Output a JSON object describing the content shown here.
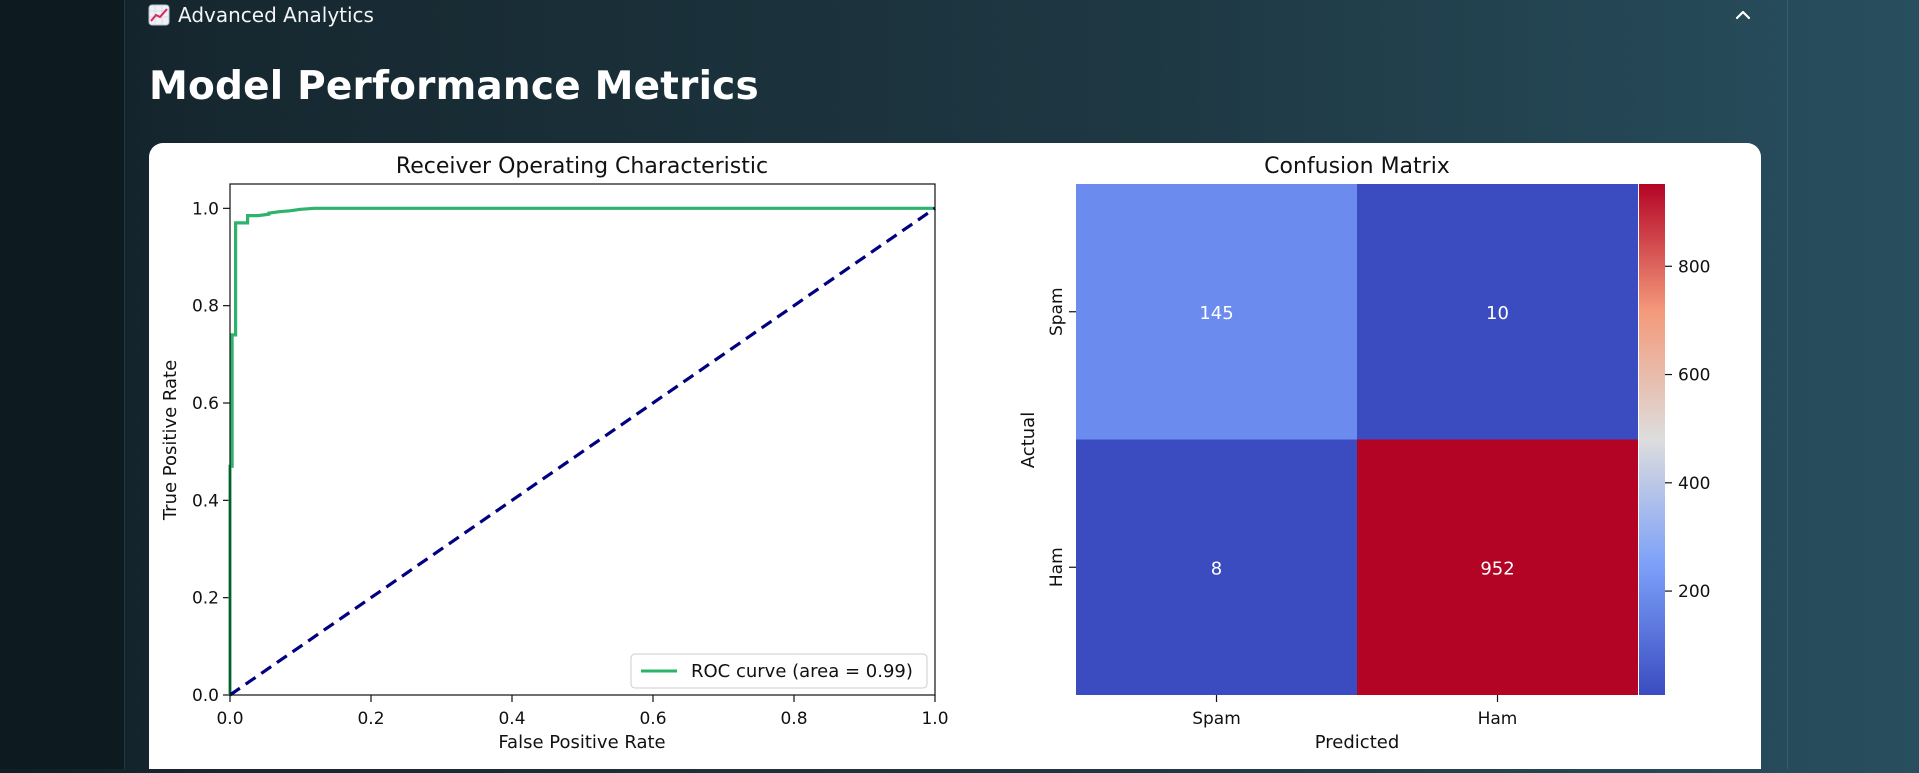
{
  "expander": {
    "label": "Advanced Analytics",
    "icon": "chart-increasing-icon",
    "expanded": true
  },
  "section": {
    "title": "Model Performance Metrics"
  },
  "chart_data": [
    {
      "type": "line",
      "title": "Receiver Operating Characteristic",
      "xlabel": "False Positive Rate",
      "ylabel": "True Positive Rate",
      "xlim": [
        0,
        1
      ],
      "ylim": [
        0,
        1.05
      ],
      "xticks": [
        "0.0",
        "0.2",
        "0.4",
        "0.6",
        "0.8",
        "1.0"
      ],
      "yticks": [
        "0.0",
        "0.2",
        "0.4",
        "0.6",
        "0.8",
        "1.0"
      ],
      "legend_position": "lower-right",
      "series": [
        {
          "name": "ROC curve (area = 0.99)",
          "color": "#2db36b",
          "x": [
            0.0,
            0.0,
            0.003,
            0.003,
            0.008,
            0.008,
            0.013,
            0.013,
            0.025,
            0.025,
            0.04,
            0.055,
            0.055,
            0.07,
            0.085,
            0.1,
            0.12,
            1.0
          ],
          "y": [
            0.0,
            0.47,
            0.47,
            0.74,
            0.74,
            0.97,
            0.97,
            0.97,
            0.97,
            0.985,
            0.985,
            0.988,
            0.99,
            0.993,
            0.995,
            0.998,
            1.0,
            1.0
          ]
        },
        {
          "name": "",
          "style": "dashed",
          "color": "#000080",
          "x": [
            0,
            1
          ],
          "y": [
            0,
            1
          ]
        }
      ]
    },
    {
      "type": "heatmap",
      "title": "Confusion Matrix",
      "xlabel": "Predicted",
      "ylabel": "Actual",
      "x_categories": [
        "Spam",
        "Ham"
      ],
      "y_categories": [
        "Spam",
        "Ham"
      ],
      "values": [
        [
          145,
          10
        ],
        [
          8,
          952
        ]
      ],
      "colormap": "coolwarm",
      "cell_colors": [
        [
          "#6b8cee",
          "#3b4cc0"
        ],
        [
          "#3b4cc0",
          "#b40426"
        ]
      ],
      "colorbar_ticks": [
        "200",
        "400",
        "600",
        "800"
      ],
      "colorbar_range": [
        8,
        952
      ]
    }
  ]
}
